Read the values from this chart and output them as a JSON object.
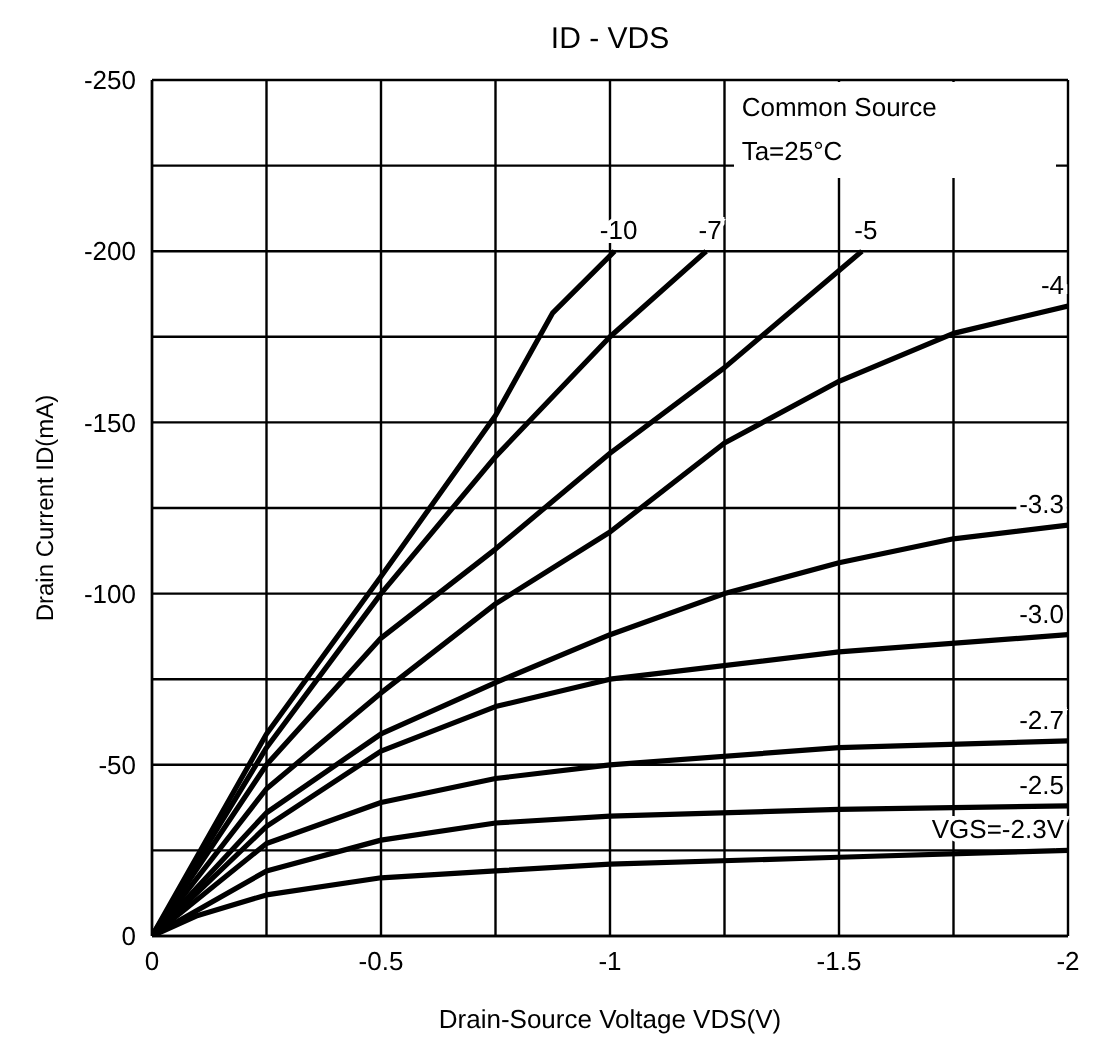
{
  "chart_data": {
    "type": "line",
    "title": "ID - VDS",
    "xlabel": "Drain-Source Voltage VDS(V)",
    "ylabel": "Drain Current ID(mA)",
    "annotations": [
      "Common Source",
      "Ta=25°C"
    ],
    "xlim": [
      0,
      -2
    ],
    "ylim": [
      0,
      -250
    ],
    "xticks": [
      0,
      {
        "value": -0.25,
        "label": null
      },
      -0.5,
      {
        "value": -0.75,
        "label": null
      },
      -1,
      {
        "value": -1.25,
        "label": null
      },
      -1.5,
      {
        "value": -1.75,
        "label": null
      },
      -2
    ],
    "yticks": [
      0,
      {
        "value": -25,
        "label": null
      },
      -50,
      {
        "value": -75,
        "label": null
      },
      -100,
      {
        "value": -125,
        "label": null
      },
      -150,
      {
        "value": -175,
        "label": null
      },
      -200,
      {
        "value": -225,
        "label": null
      },
      -250
    ],
    "grid": true,
    "line_style": "solid",
    "series": [
      {
        "name": "VGS=-2.3V",
        "color": "#000000",
        "x": [
          0,
          -0.1,
          -0.25,
          -0.5,
          -0.75,
          -1,
          -1.5,
          -2
        ],
        "values": [
          0,
          -6,
          -12,
          -17,
          -19,
          -21,
          -23,
          -25
        ]
      },
      {
        "name": "-2.5",
        "color": "#000000",
        "x": [
          0,
          -0.25,
          -0.5,
          -0.75,
          -1,
          -1.5,
          -2
        ],
        "values": [
          0,
          -19,
          -28,
          -33,
          -35,
          -37,
          -38
        ]
      },
      {
        "name": "-2.7",
        "color": "#000000",
        "x": [
          0,
          -0.25,
          -0.5,
          -0.75,
          -1,
          -1.5,
          -2
        ],
        "values": [
          0,
          -27,
          -39,
          -46,
          -50,
          -55,
          -57
        ]
      },
      {
        "name": "-3.0",
        "color": "#000000",
        "x": [
          0,
          -0.25,
          -0.5,
          -0.75,
          -1,
          -1.5,
          -2
        ],
        "values": [
          0,
          -32,
          -54,
          -67,
          -75,
          -83,
          -88
        ]
      },
      {
        "name": "-3.3",
        "color": "#000000",
        "x": [
          0,
          -0.25,
          -0.5,
          -0.75,
          -1,
          -1.25,
          -1.5,
          -1.75,
          -2
        ],
        "values": [
          0,
          -36,
          -59,
          -74,
          -88,
          -100,
          -109,
          -116,
          -120
        ]
      },
      {
        "name": "-4",
        "color": "#000000",
        "x": [
          0,
          -0.25,
          -0.5,
          -0.75,
          -1,
          -1.25,
          -1.5,
          -1.75,
          -2
        ],
        "values": [
          0,
          -43,
          -71,
          -97,
          -118,
          -144,
          -162,
          -176,
          -184
        ]
      },
      {
        "name": "-5",
        "color": "#000000",
        "x": [
          0,
          -0.25,
          -0.5,
          -0.75,
          -1,
          -1.25,
          -1.55
        ],
        "values": [
          0,
          -50,
          -87,
          -113,
          -141,
          -166,
          -200
        ]
      },
      {
        "name": "-7",
        "color": "#000000",
        "x": [
          0,
          -0.25,
          -0.5,
          -0.75,
          -1,
          -1.21
        ],
        "values": [
          0,
          -55,
          -100,
          -140,
          -175,
          -200
        ]
      },
      {
        "name": "-10",
        "color": "#000000",
        "x": [
          0,
          -0.25,
          -0.5,
          -0.75,
          -0.875,
          -1.01
        ],
        "values": [
          0,
          -59,
          -105,
          -152,
          -182,
          -200
        ]
      }
    ]
  }
}
